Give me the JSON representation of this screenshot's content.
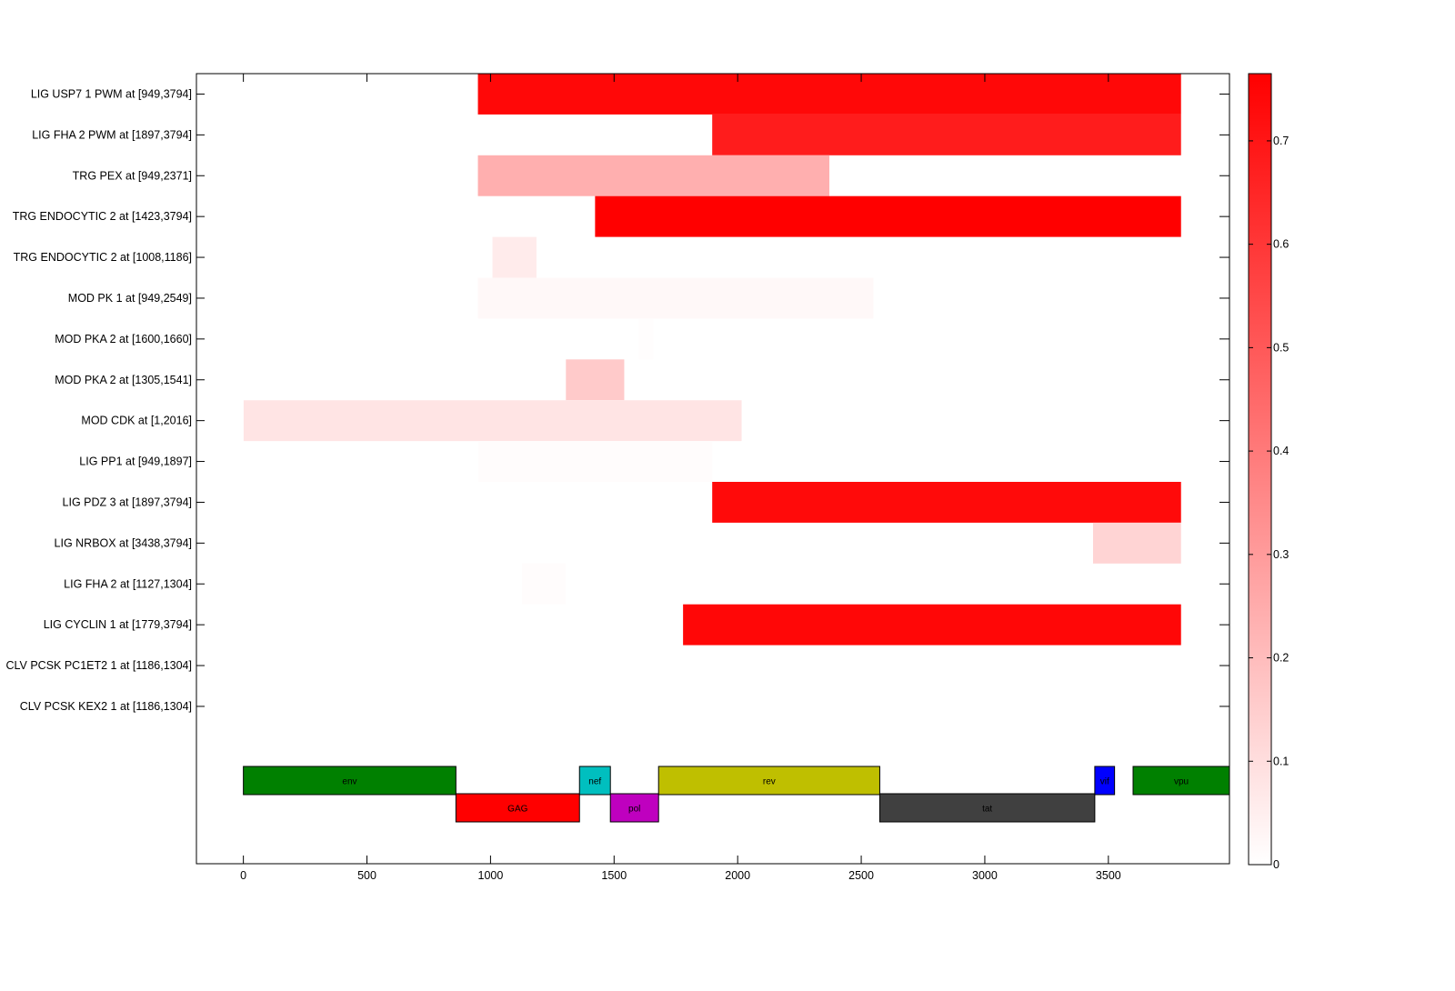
{
  "chart_data": {
    "type": "heatmap",
    "x_ticks": [
      0,
      500,
      1000,
      1500,
      2000,
      2500,
      3000,
      3500
    ],
    "xlim": [
      -190,
      3990
    ],
    "colorbar": {
      "range": [
        0,
        0.765
      ],
      "ticks": [
        0,
        0.1,
        0.2,
        0.3,
        0.4,
        0.5,
        0.6,
        0.7
      ],
      "tick_labels": [
        "0",
        "0.1",
        "0.2",
        "0.3",
        "0.4",
        "0.5",
        "0.6",
        "0.7"
      ],
      "colormap": "white-to-red"
    },
    "rows": [
      {
        "label": "LIG USP7 1 PWM at [949,3794]",
        "start": 949,
        "end": 3794,
        "value": 0.74
      },
      {
        "label": "LIG FHA 2 PWM at [1897,3794]",
        "start": 1897,
        "end": 3794,
        "value": 0.68
      },
      {
        "label": "TRG PEX at [949,2371]",
        "start": 949,
        "end": 2371,
        "value": 0.24
      },
      {
        "label": "TRG ENDOCYTIC 2 at [1423,3794]",
        "start": 1423,
        "end": 3794,
        "value": 0.765
      },
      {
        "label": "TRG ENDOCYTIC 2 at [1008,1186]",
        "start": 1008,
        "end": 1186,
        "value": 0.06
      },
      {
        "label": "MOD PK 1 at [949,2549]",
        "start": 949,
        "end": 2549,
        "value": 0.02
      },
      {
        "label": "MOD PKA 2 at [1600,1660]",
        "start": 1600,
        "end": 1660,
        "value": 0.005
      },
      {
        "label": "MOD PKA 2 at [1305,1541]",
        "start": 1305,
        "end": 1541,
        "value": 0.16
      },
      {
        "label": "MOD CDK at [1,2016]",
        "start": 1,
        "end": 2016,
        "value": 0.08
      },
      {
        "label": "LIG PP1 at [949,1897]",
        "start": 949,
        "end": 1897,
        "value": 0.01
      },
      {
        "label": "LIG PDZ 3 at [1897,3794]",
        "start": 1897,
        "end": 3794,
        "value": 0.735
      },
      {
        "label": "LIG NRBOX at [3438,3794]",
        "start": 3438,
        "end": 3794,
        "value": 0.13
      },
      {
        "label": "LIG FHA 2 at [1127,1304]",
        "start": 1127,
        "end": 1304,
        "value": 0.008
      },
      {
        "label": "LIG CYCLIN 1 at [1779,3794]",
        "start": 1779,
        "end": 3794,
        "value": 0.745
      },
      {
        "label": "CLV PCSK PC1ET2 1 at [1186,1304]",
        "start": 1186,
        "end": 1304,
        "value": 0
      },
      {
        "label": "CLV PCSK KEX2 1 at [1186,1304]",
        "start": 1186,
        "end": 1304,
        "value": 0
      }
    ],
    "genes": [
      {
        "name": "env",
        "start": 0,
        "end": 860,
        "lane": 0,
        "color": "#008000"
      },
      {
        "name": "GAG",
        "start": 860,
        "end": 1360,
        "lane": 1,
        "color": "#ff0000"
      },
      {
        "name": "nef",
        "start": 1360,
        "end": 1485,
        "lane": 0,
        "color": "#00bfbf"
      },
      {
        "name": "pol",
        "start": 1485,
        "end": 1680,
        "lane": 1,
        "color": "#bf00bf"
      },
      {
        "name": "rev",
        "start": 1680,
        "end": 2575,
        "lane": 0,
        "color": "#bfbf00"
      },
      {
        "name": "tat",
        "start": 2575,
        "end": 3445,
        "lane": 1,
        "color": "#404040"
      },
      {
        "name": "vif",
        "start": 3445,
        "end": 3525,
        "lane": 0,
        "color": "#0000ff"
      },
      {
        "name": "vpu",
        "start": 3600,
        "end": 3990,
        "lane": 0,
        "color": "#008000"
      }
    ]
  }
}
